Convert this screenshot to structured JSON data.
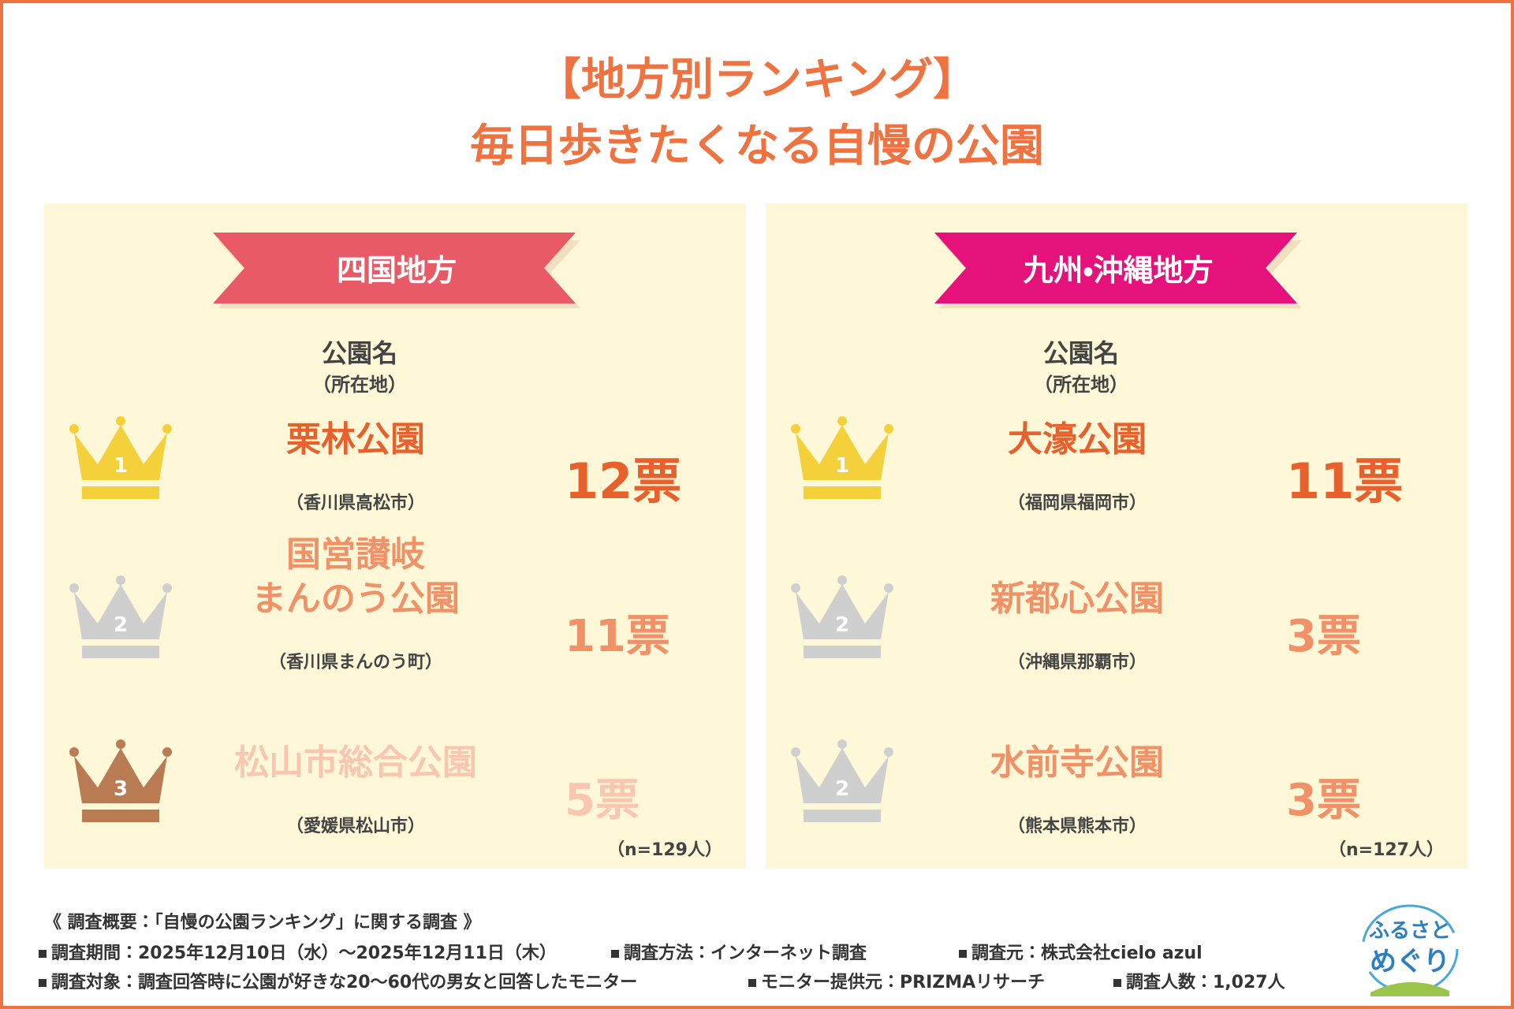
{
  "title": {
    "line1": "【地方別ランキング】",
    "line2": "毎日歩きたくなる自慢の公園"
  },
  "panels": [
    {
      "region": "四国地方",
      "header_name": "公園名",
      "header_location": "（所在地）",
      "ranks": [
        {
          "rank": "1",
          "name": [
            "栗林公園"
          ],
          "location": "（香川県高松市）",
          "votes": "12票"
        },
        {
          "rank": "2",
          "name": [
            "国営讃岐",
            "まんのう公園"
          ],
          "location": "（香川県まんのう町）",
          "votes": "11票"
        },
        {
          "rank": "3",
          "name": [
            "松山市総合公園"
          ],
          "location": "（愛媛県松山市）",
          "votes": "5票"
        }
      ],
      "sample": "（n=129人）"
    },
    {
      "region": "九州・沖縄地方",
      "header_name": "公園名",
      "header_location": "（所在地）",
      "ranks": [
        {
          "rank": "1",
          "name": [
            "大濠公園"
          ],
          "location": "（福岡県福岡市）",
          "votes": "11票"
        },
        {
          "rank": "2",
          "name": [
            "新都心公園"
          ],
          "location": "（沖縄県那覇市）",
          "votes": "3票"
        },
        {
          "rank": "2",
          "name": [
            "水前寺公園"
          ],
          "location": "（熊本県熊本市）",
          "votes": "3票"
        }
      ],
      "sample": "（n=127人）"
    }
  ],
  "survey": {
    "heading": "《 調査概要：「自慢の公園ランキング」に関する調査 》",
    "items": [
      "調査期間：2025年12月10日（水）～2025年12月11日（木）",
      "調査方法：インターネット調査",
      "調査元：株式会社cielo azul",
      "調査対象：調査回答時に公園が好きな20～60代の男女と回答したモニター",
      "モニター提供元：PRIZMAリサーチ",
      "調査人数：1,027人"
    ]
  },
  "logo": {
    "line1": "ふるさと",
    "line2": "めぐり"
  }
}
